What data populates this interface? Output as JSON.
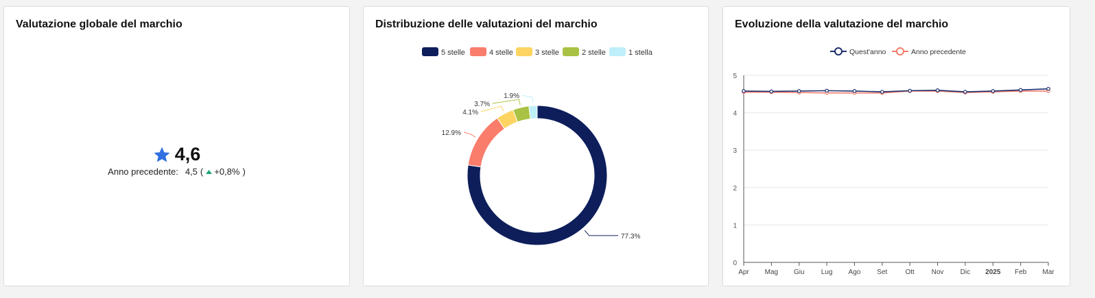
{
  "card1": {
    "title": "Valutazione globale del marchio",
    "score": "4,6",
    "prev_label": "Anno precedente:",
    "prev_value": "4,5",
    "paren_open": "(",
    "change": "+0,8%",
    "paren_close": ")",
    "star_color": "#2f6fe0",
    "up_color": "#1ea672"
  },
  "card2": {
    "title": "Distribuzione delle valutazioni del marchio",
    "chart_data": {
      "type": "pie",
      "title": "Distribuzione delle valutazioni del marchio",
      "categories": [
        "5 stelle",
        "4 stelle",
        "3 stelle",
        "2 stelle",
        "1 stella"
      ],
      "values": [
        77.3,
        12.9,
        4.1,
        3.7,
        1.9
      ],
      "labels": [
        "77.3%",
        "12.9%",
        "4.1%",
        "3.7%",
        "1.9%"
      ],
      "colors": [
        "#0d1e5b",
        "#fa7d6c",
        "#fdd462",
        "#a9c243",
        "#bfeff8"
      ],
      "legend": "top-center"
    }
  },
  "card3": {
    "title": "Evoluzione della valutazione del marchio",
    "chart_data": {
      "type": "line",
      "title": "Evoluzione della valutazione del marchio",
      "categories": [
        "Apr",
        "Mag",
        "Giu",
        "Lug",
        "Ago",
        "Set",
        "Ott",
        "Nov",
        "Dic",
        "2025",
        "Feb",
        "Mar"
      ],
      "series": [
        {
          "name": "Quest'anno",
          "color": "#1b2f6e",
          "values": [
            4.58,
            4.57,
            4.58,
            4.59,
            4.58,
            4.56,
            4.59,
            4.6,
            4.56,
            4.58,
            4.61,
            4.64
          ]
        },
        {
          "name": "Anno precedente",
          "color": "#f47c6a",
          "values": [
            4.55,
            4.55,
            4.54,
            4.53,
            4.53,
            4.53,
            4.58,
            4.58,
            4.54,
            4.56,
            4.58,
            4.58
          ]
        }
      ],
      "ylim": [
        0,
        5
      ],
      "yticks": [
        "0",
        "1",
        "2",
        "3",
        "4",
        "5"
      ],
      "grid": true,
      "legend": "top-center"
    }
  }
}
